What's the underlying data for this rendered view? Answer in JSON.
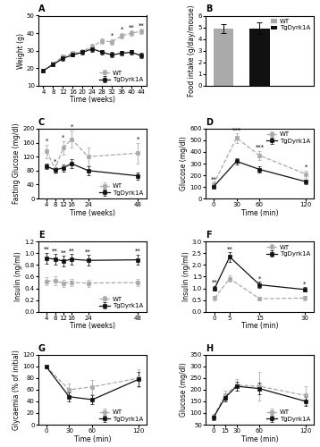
{
  "chart_data": [
    {
      "type": "line",
      "title": "A",
      "xlabel": "Time (weeks)",
      "ylabel": "Weight (g)",
      "x": [
        4,
        8,
        12,
        16,
        20,
        24,
        28,
        32,
        36,
        40,
        44
      ],
      "xlim": [
        2,
        46
      ],
      "xticks": [
        4,
        8,
        12,
        16,
        20,
        24,
        28,
        32,
        36,
        40,
        44
      ],
      "ylim": [
        10,
        50
      ],
      "yticks": [
        10,
        20,
        30,
        40,
        50
      ],
      "legend": "lower right",
      "series": [
        {
          "name": "WT",
          "color": "#aaaaaa",
          "marker": "square",
          "line_style": "dashed",
          "values": [
            18.5,
            22.5,
            26.5,
            28.5,
            29.5,
            32.5,
            35.5,
            35.0,
            38.5,
            40.0,
            41.0
          ],
          "errors": [
            0.8,
            1.0,
            1.2,
            1.0,
            1.2,
            1.5,
            1.5,
            1.5,
            1.5,
            1.5,
            1.5
          ]
        },
        {
          "name": "TgDyrk1A",
          "color": "#111111",
          "marker": "square",
          "line_style": "solid",
          "values": [
            18.5,
            22.0,
            25.5,
            27.5,
            29.0,
            31.0,
            29.0,
            27.5,
            28.5,
            29.0,
            27.0
          ],
          "errors": [
            0.8,
            1.0,
            1.2,
            1.0,
            1.2,
            1.5,
            1.5,
            1.5,
            1.5,
            1.5,
            1.5
          ]
        }
      ],
      "annotations": [
        {
          "x": 32,
          "text": "*"
        },
        {
          "x": 36,
          "text": "*"
        },
        {
          "x": 40,
          "text": "**"
        },
        {
          "x": 44,
          "text": "**"
        }
      ]
    },
    {
      "type": "bar",
      "title": "B",
      "ylabel": "Food intake (g/day/mouse)",
      "categories": [
        "WT",
        "TgDyrk1A"
      ],
      "values": [
        4.9,
        4.9
      ],
      "errors": [
        0.4,
        0.5
      ],
      "colors": [
        "#aaaaaa",
        "#111111"
      ],
      "ylim": [
        0,
        6
      ],
      "yticks": [
        0,
        1,
        2,
        3,
        4,
        5,
        6
      ],
      "legend": "upper right",
      "tick_labels": "y"
    },
    {
      "type": "line",
      "title": "C",
      "xlabel": "Time (weeks)",
      "ylabel": "Fasting Glucose (mg/dl)",
      "x": [
        4,
        8,
        12,
        16,
        24,
        48
      ],
      "xlim": [
        0,
        52
      ],
      "xticks": [
        4,
        8,
        12,
        16,
        24,
        48
      ],
      "ylim": [
        0,
        200
      ],
      "yticks": [
        0,
        40,
        80,
        120,
        160,
        200
      ],
      "legend": "lower right",
      "series": [
        {
          "name": "WT",
          "color": "#aaaaaa",
          "marker": "square",
          "line_style": "dashed",
          "values": [
            135,
            85,
            145,
            170,
            120,
            130
          ],
          "errors": [
            20,
            12,
            20,
            25,
            25,
            30
          ]
        },
        {
          "name": "TgDyrk1A",
          "color": "#111111",
          "marker": "square",
          "line_style": "solid",
          "values": [
            92,
            82,
            88,
            100,
            80,
            65
          ],
          "errors": [
            8,
            8,
            10,
            12,
            12,
            10
          ]
        }
      ],
      "annotations": [
        {
          "x": 4,
          "text": "*"
        },
        {
          "x": 8,
          "text": "*"
        },
        {
          "x": 12,
          "text": "*"
        },
        {
          "x": 16,
          "text": "*"
        },
        {
          "x": 48,
          "text": "*"
        }
      ]
    },
    {
      "type": "line",
      "title": "D",
      "xlabel": "Time (min)",
      "ylabel": "Glucose (mg/dl)",
      "x": [
        0,
        30,
        60,
        120
      ],
      "xlim": [
        -10,
        130
      ],
      "xticks": [
        0,
        30,
        60,
        120
      ],
      "ylim": [
        0,
        600
      ],
      "yticks": [
        0,
        100,
        200,
        300,
        400,
        500,
        600
      ],
      "legend": "upper right",
      "series": [
        {
          "name": "WT",
          "color": "#aaaaaa",
          "marker": "square",
          "line_style": "dashed",
          "values": [
            120,
            520,
            370,
            210
          ],
          "errors": [
            15,
            40,
            40,
            30
          ]
        },
        {
          "name": "TgDyrk1A",
          "color": "#111111",
          "marker": "square",
          "line_style": "solid",
          "values": [
            100,
            320,
            250,
            145
          ],
          "errors": [
            10,
            25,
            25,
            20
          ]
        }
      ],
      "annotations": [
        {
          "x": 0,
          "text": "**"
        },
        {
          "x": 30,
          "text": "***"
        },
        {
          "x": 60,
          "text": "***"
        },
        {
          "x": 120,
          "text": "*"
        }
      ]
    },
    {
      "type": "line",
      "title": "E",
      "xlabel": "Time (weeks)",
      "ylabel": "Insulin (ng/ml)",
      "x": [
        4,
        8,
        12,
        16,
        24,
        48
      ],
      "xlim": [
        0,
        52
      ],
      "xticks": [
        4,
        8,
        12,
        16,
        24,
        48
      ],
      "ylim": [
        0,
        1.2
      ],
      "yticks": [
        {
          "value": 0,
          "label": "0.0"
        },
        0.2,
        0.4,
        0.6,
        0.8,
        1.0,
        1.2
      ],
      "legend": "lower right",
      "series": [
        {
          "name": "WT",
          "color": "#aaaaaa",
          "marker": "square",
          "line_style": "dashed",
          "values": [
            0.52,
            0.53,
            0.49,
            0.5,
            0.49,
            0.5
          ],
          "errors": [
            0.07,
            0.07,
            0.06,
            0.06,
            0.06,
            0.06
          ]
        },
        {
          "name": "TgDyrk1A",
          "color": "#111111",
          "marker": "square",
          "line_style": "solid",
          "values": [
            0.92,
            0.9,
            0.87,
            0.9,
            0.88,
            0.89
          ],
          "errors": [
            0.09,
            0.09,
            0.09,
            0.09,
            0.09,
            0.09
          ]
        }
      ],
      "annotations": [
        {
          "x": 4,
          "text": "**"
        },
        {
          "x": 8,
          "text": "**"
        },
        {
          "x": 12,
          "text": "**"
        },
        {
          "x": 16,
          "text": "**"
        },
        {
          "x": 24,
          "text": "**"
        },
        {
          "x": 48,
          "text": "**"
        }
      ]
    },
    {
      "type": "line",
      "title": "F",
      "xlabel": "Time (min)",
      "ylabel": "Insulin (ng/ml)",
      "x": [
        0,
        5,
        15,
        30
      ],
      "xlim": [
        -3,
        33
      ],
      "xticks": [
        0,
        5,
        15,
        30
      ],
      "ylim": [
        0,
        3.0
      ],
      "yticks": [
        {
          "value": 0,
          "label": "0.0"
        },
        0.5,
        1.0,
        1.5,
        2.0,
        2.5,
        3.0
      ],
      "legend": "upper right",
      "series": [
        {
          "name": "WT",
          "color": "#aaaaaa",
          "marker": "square",
          "line_style": "dashed",
          "values": [
            0.58,
            1.42,
            0.55,
            0.58
          ],
          "errors": [
            0.08,
            0.12,
            0.08,
            0.08
          ]
        },
        {
          "name": "TgDyrk1A",
          "color": "#111111",
          "marker": "square",
          "line_style": "solid",
          "values": [
            1.0,
            2.35,
            1.15,
            0.95
          ],
          "errors": [
            0.1,
            0.2,
            0.12,
            0.1
          ]
        }
      ],
      "annotations": [
        {
          "x": 0,
          "text": "**"
        },
        {
          "x": 5,
          "text": "**"
        },
        {
          "x": 15,
          "text": "*"
        },
        {
          "x": 30,
          "text": "*"
        }
      ]
    },
    {
      "type": "line",
      "title": "G",
      "xlabel": "Time (min)",
      "ylabel": "Glycaemia (% of initial)",
      "x": [
        0,
        30,
        60,
        120
      ],
      "xlim": [
        -10,
        130
      ],
      "xticks": [
        0,
        30,
        60,
        120
      ],
      "ylim": [
        0,
        120
      ],
      "yticks": [
        0,
        20,
        40,
        60,
        80,
        100,
        120
      ],
      "legend": "lower right",
      "series": [
        {
          "name": "WT",
          "color": "#aaaaaa",
          "marker": "square",
          "line_style": "dashed",
          "values": [
            100,
            60,
            65,
            80
          ],
          "errors": [
            0,
            10,
            12,
            15
          ]
        },
        {
          "name": "TgDyrk1A",
          "color": "#111111",
          "marker": "square",
          "line_style": "solid",
          "values": [
            100,
            48,
            43,
            78
          ],
          "errors": [
            0,
            8,
            8,
            12
          ]
        }
      ]
    },
    {
      "type": "line",
      "title": "H",
      "xlabel": "Time (min)",
      "ylabel": "Glucose (mg/dl)",
      "x": [
        0,
        15,
        30,
        60,
        120
      ],
      "xlim": [
        -10,
        130
      ],
      "xticks": [
        0,
        15,
        30,
        60,
        120
      ],
      "ylim": [
        50,
        350
      ],
      "yticks": [
        50,
        100,
        150,
        200,
        250,
        300,
        350
      ],
      "legend": "lower right",
      "series": [
        {
          "name": "WT",
          "color": "#aaaaaa",
          "marker": "square",
          "line_style": "dashed",
          "values": [
            85,
            175,
            220,
            215,
            175
          ],
          "errors": [
            10,
            20,
            25,
            60,
            40
          ]
        },
        {
          "name": "TgDyrk1A",
          "color": "#111111",
          "marker": "square",
          "line_style": "solid",
          "values": [
            80,
            165,
            215,
            205,
            150
          ],
          "errors": [
            10,
            15,
            20,
            25,
            20
          ]
        }
      ]
    }
  ]
}
